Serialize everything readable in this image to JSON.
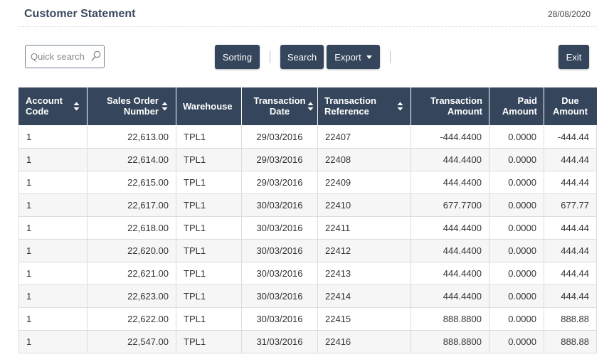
{
  "header": {
    "title": "Customer Statement",
    "date": "28/08/2020"
  },
  "toolbar": {
    "search_placeholder": "Quick search",
    "sorting_label": "Sorting",
    "search_label": "Search",
    "export_label": "Export",
    "exit_label": "Exit"
  },
  "table": {
    "columns": [
      {
        "label1": "Account",
        "label2": "Code"
      },
      {
        "label1": "Sales Order",
        "label2": "Number"
      },
      {
        "label1": "Warehouse",
        "label2": ""
      },
      {
        "label1": "Transaction",
        "label2": "Date"
      },
      {
        "label1": "Transaction",
        "label2": "Reference"
      },
      {
        "label1": "Transaction",
        "label2": "Amount"
      },
      {
        "label1": "Paid",
        "label2": "Amount"
      },
      {
        "label1": "Due",
        "label2": "Amount"
      }
    ],
    "rows": [
      [
        "1",
        "22,613.00",
        "TPL1",
        "29/03/2016",
        "22407",
        "-444.4400",
        "0.0000",
        "-444.44"
      ],
      [
        "1",
        "22,614.00",
        "TPL1",
        "29/03/2016",
        "22408",
        "444.4400",
        "0.0000",
        "444.44"
      ],
      [
        "1",
        "22,615.00",
        "TPL1",
        "29/03/2016",
        "22409",
        "444.4400",
        "0.0000",
        "444.44"
      ],
      [
        "1",
        "22,617.00",
        "TPL1",
        "30/03/2016",
        "22410",
        "677.7700",
        "0.0000",
        "677.77"
      ],
      [
        "1",
        "22,618.00",
        "TPL1",
        "30/03/2016",
        "22411",
        "444.4400",
        "0.0000",
        "444.44"
      ],
      [
        "1",
        "22,620.00",
        "TPL1",
        "30/03/2016",
        "22412",
        "444.4400",
        "0.0000",
        "444.44"
      ],
      [
        "1",
        "22,621.00",
        "TPL1",
        "30/03/2016",
        "22413",
        "444.4400",
        "0.0000",
        "444.44"
      ],
      [
        "1",
        "22,623.00",
        "TPL1",
        "30/03/2016",
        "22414",
        "444.4400",
        "0.0000",
        "444.44"
      ],
      [
        "1",
        "22,622.00",
        "TPL1",
        "30/03/2016",
        "22415",
        "888.8800",
        "0.0000",
        "888.88"
      ],
      [
        "1",
        "22,547.00",
        "TPL1",
        "31/03/2016",
        "22416",
        "888.8800",
        "0.0000",
        "888.88"
      ]
    ]
  },
  "colors": {
    "header_bg": "#35455b",
    "title_color": "#3a4a5e"
  }
}
